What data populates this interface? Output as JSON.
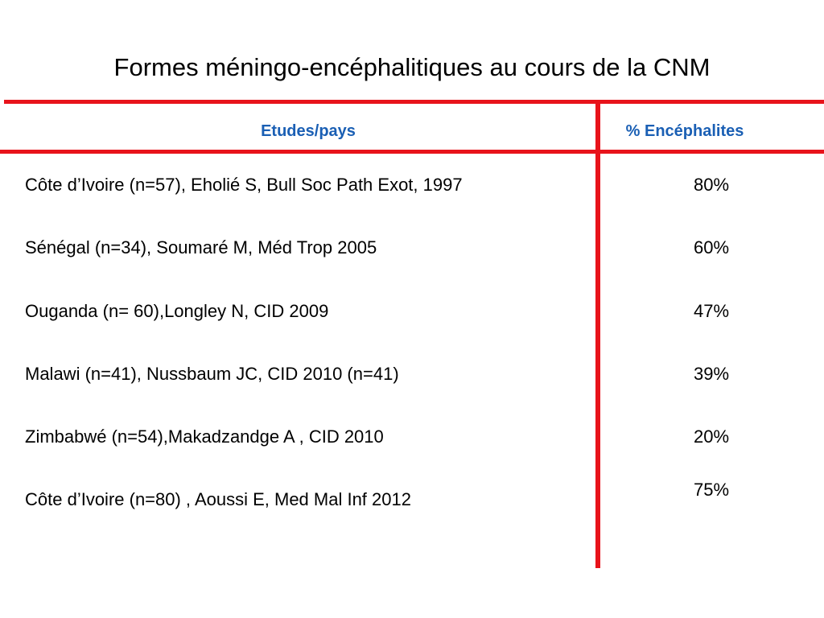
{
  "slide": {
    "title": "Formes méningo-encéphalitiques au cours de la CNM"
  },
  "table": {
    "headers": {
      "study": "Etudes/pays",
      "percent": "% Encéphalites"
    },
    "rows": [
      {
        "study": "Côte d’Ivoire (n=57), Eholié S, Bull Soc Path Exot, 1997",
        "percent": "80%"
      },
      {
        "study": "Sénégal (n=34), Soumaré M, Méd Trop 2005",
        "percent": "60%"
      },
      {
        "study": "Ouganda (n= 60),Longley N, CID 2009",
        "percent": "47%"
      },
      {
        "study": "Malawi (n=41), Nussbaum JC, CID 2010 (n=41)",
        "percent": "39%"
      },
      {
        "study": "Zimbabwé (n=54),Makadzandge A , CID 2010",
        "percent": "20%"
      },
      {
        "study": "Côte d’Ivoire (n=80) , Aoussi E, Med Mal Inf 2012",
        "percent": "75%"
      }
    ]
  },
  "colors": {
    "rule": "#e8131b",
    "header_text": "#1a5fb4",
    "body_text": "#000000"
  }
}
